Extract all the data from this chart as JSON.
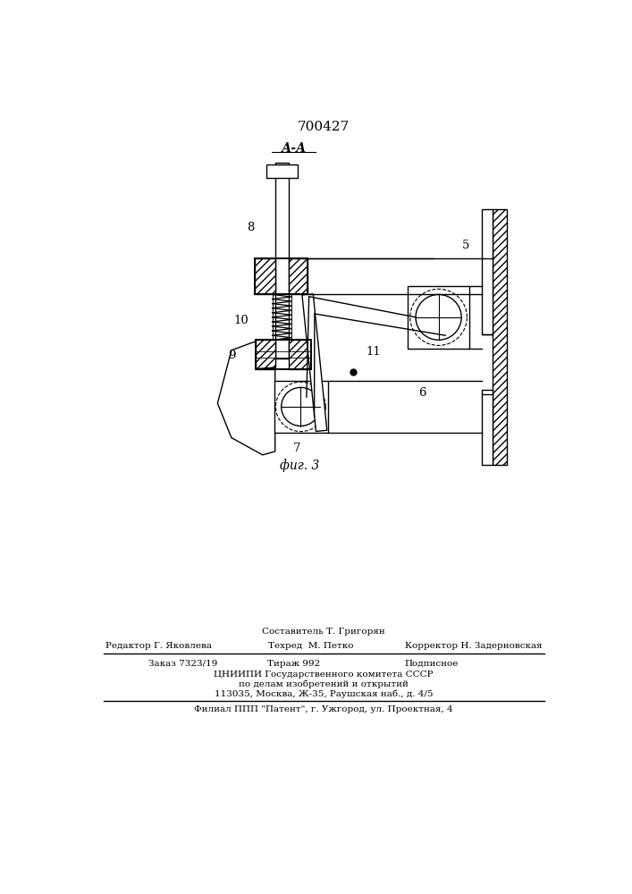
{
  "patent_number": "700427",
  "section_label": "А-А",
  "fig_label": "фиг. 3",
  "bg_color": "#ffffff",
  "line_color": "#000000",
  "footer": {
    "line1": "Составитель Т. Григорян",
    "line2_left": "Редактор Г. Яковлева",
    "line2_mid": "Техред  М. Петко",
    "line2_right": "Корректор Н. Задерновская",
    "line3_left": "Заказ 7323/19",
    "line3_mid": "Тираж 992",
    "line3_right": "Подписное",
    "line4": "ЦНИИПИ Государственного комитета СССР",
    "line5": "по делам изобретений и открытий",
    "line6": "113035, Москва, Ж-35, Раушская наб., д. 4/5",
    "line7": "Филиал ППП \"Патент\", г. Ужгород, ул. Проектная, 4"
  }
}
